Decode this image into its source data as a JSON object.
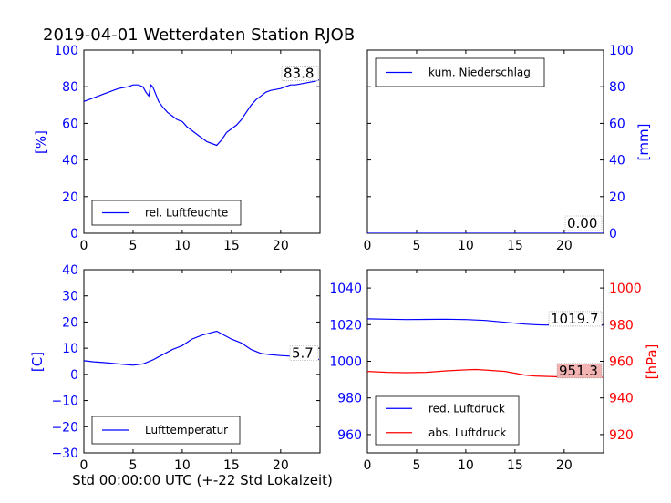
{
  "title": "2019-04-01 Wetterdaten Station RJOB",
  "xlabel": "Std 00:00:00 UTC (+-22 Std Lokalzeit)",
  "colors": {
    "blue": "#0000ff",
    "red": "#ff0000",
    "black": "#000000",
    "label_bg": "#ffffff",
    "pressure_label_bg": "#f2b3b3"
  },
  "chart_data": [
    {
      "id": "humidity",
      "type": "line",
      "ylabel": "[%]",
      "xlim": [
        0,
        24
      ],
      "ylim": [
        0,
        100
      ],
      "xticks": [
        0,
        5,
        10,
        15,
        20
      ],
      "yticks": [
        0,
        20,
        40,
        60,
        80,
        100
      ],
      "y_axis_side": "left",
      "tick_color": "blue",
      "legend_position": "lower center",
      "last_value_label": "83.8",
      "series": [
        {
          "name": "rel. Luftfeuchte",
          "color": "blue",
          "x": [
            0,
            0.5,
            1,
            1.5,
            2,
            2.5,
            3,
            3.5,
            4,
            4.5,
            5,
            5.5,
            6,
            6.3,
            6.6,
            6.8,
            7,
            7.3,
            7.6,
            8,
            8.5,
            9,
            9.5,
            10,
            10.5,
            11,
            11.5,
            12,
            12.5,
            13,
            13.5,
            14,
            14.5,
            15,
            15.5,
            16,
            16.5,
            17,
            17.5,
            18,
            18.5,
            19,
            19.5,
            20,
            20.5,
            21,
            21.5,
            22,
            22.5,
            23,
            23.5,
            23.9
          ],
          "y": [
            72,
            73,
            74,
            75,
            76,
            77,
            78,
            79,
            79.5,
            80,
            81,
            81,
            80,
            77,
            75,
            81,
            80,
            76,
            72,
            69,
            66,
            64,
            62,
            61,
            58,
            56,
            54,
            52,
            50,
            49,
            48,
            51,
            55,
            57,
            59,
            62,
            66,
            70,
            73,
            75,
            77,
            78,
            78.5,
            79,
            80,
            81,
            81,
            81.5,
            82,
            82.5,
            83,
            83.8
          ]
        }
      ]
    },
    {
      "id": "precipitation",
      "type": "line",
      "ylabel": "[mm]",
      "xlim": [
        0,
        24
      ],
      "ylim": [
        0,
        100
      ],
      "xticks": [
        0,
        5,
        10,
        15,
        20
      ],
      "yticks": [
        0,
        20,
        40,
        60,
        80,
        100
      ],
      "y_axis_side": "right",
      "tick_color": "blue",
      "legend_position": "upper left",
      "last_value_label": "0.00",
      "series": [
        {
          "name": "kum. Niederschlag",
          "color": "blue",
          "x": [
            0,
            24
          ],
          "y": [
            0,
            0
          ]
        }
      ]
    },
    {
      "id": "temperature",
      "type": "line",
      "ylabel": "[C]",
      "xlim": [
        0,
        24
      ],
      "ylim": [
        -30,
        40
      ],
      "xticks": [
        0,
        5,
        10,
        15,
        20
      ],
      "yticks": [
        -30,
        -20,
        -10,
        0,
        10,
        20,
        30,
        40
      ],
      "y_axis_side": "left",
      "tick_color": "blue",
      "legend_position": "lower center",
      "last_value_label": "5.7",
      "series": [
        {
          "name": "Lufttemperatur",
          "color": "blue",
          "x": [
            0,
            1,
            2,
            3,
            4,
            5,
            6,
            7,
            8,
            9,
            10,
            11,
            12,
            13,
            13.5,
            14,
            15,
            16,
            17,
            18,
            19,
            20,
            21,
            22,
            23,
            23.9
          ],
          "y": [
            5.2,
            4.8,
            4.5,
            4.2,
            3.8,
            3.5,
            4.0,
            5.5,
            7.5,
            9.5,
            11.0,
            13.5,
            15.0,
            16.0,
            16.5,
            15.5,
            13.5,
            12.0,
            9.5,
            8.0,
            7.5,
            7.2,
            7.0,
            6.5,
            6.0,
            5.7
          ]
        }
      ]
    },
    {
      "id": "pressure",
      "type": "line",
      "ylabel": "[hPa]",
      "xlim": [
        0,
        24
      ],
      "ylim": [
        950,
        1050
      ],
      "xticks": [
        0,
        5,
        10,
        15,
        20
      ],
      "yticks": [
        960,
        980,
        1000,
        1020,
        1040
      ],
      "y2lim": [
        910,
        1010
      ],
      "y2ticks": [
        920,
        940,
        960,
        980,
        1000
      ],
      "y_axis_side": "left",
      "y2_axis_side": "right",
      "tick_color": "blue",
      "tick2_color": "red",
      "legend_position": "lower left",
      "series": [
        {
          "name": "red. Luftdruck",
          "color": "blue",
          "axis": "left",
          "last_value_label": "1019.7",
          "x": [
            0,
            2,
            4,
            6,
            8,
            10,
            12,
            14,
            16,
            17,
            18,
            20,
            22,
            23.9
          ],
          "y": [
            1023.2,
            1023.0,
            1022.8,
            1022.9,
            1023.0,
            1022.8,
            1022.3,
            1021.3,
            1020.3,
            1020.0,
            1019.8,
            1019.9,
            1019.7,
            1019.7
          ]
        },
        {
          "name": "abs. Luftdruck",
          "color": "red",
          "axis": "right",
          "last_value_label": "951.3",
          "x": [
            0,
            2,
            4,
            6,
            8,
            10,
            11,
            12,
            14,
            15,
            16,
            17,
            18,
            20,
            22,
            23.9
          ],
          "y": [
            954.5,
            954.0,
            953.8,
            954.0,
            954.8,
            955.3,
            955.5,
            955.2,
            954.5,
            953.5,
            952.5,
            952.0,
            951.8,
            951.5,
            951.3,
            951.3
          ]
        }
      ]
    }
  ]
}
